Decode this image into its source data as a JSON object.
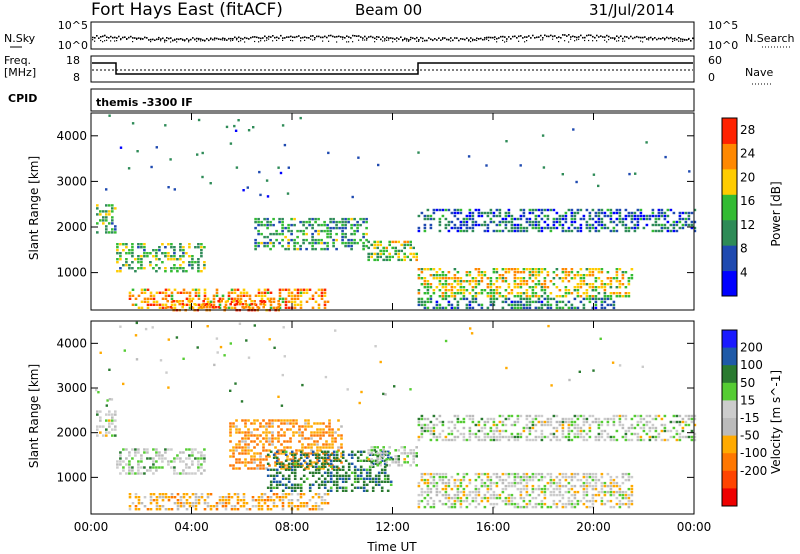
{
  "header": {
    "station": "Fort Hays East (fitACF)",
    "beam": "Beam 00",
    "date": "31/Jul/2014"
  },
  "noise_panel": {
    "left_label": "N.Sky",
    "right_label": "N.Search",
    "left_ticks": [
      "10^5",
      "10^0"
    ],
    "right_ticks": [
      "10^5",
      "10^0"
    ]
  },
  "freq_panel": {
    "left_label_line1": "Freq.",
    "left_label_line2": "[MHz]",
    "right_label": "Nave",
    "left_ticks": [
      "18",
      "8"
    ],
    "right_ticks": [
      "60",
      "0"
    ]
  },
  "cpid_panel": {
    "label": "CPID",
    "program": "themis -3300 IF"
  },
  "colors": {
    "power": [
      "#0000ff",
      "#1f4ab0",
      "#2e8b57",
      "#33bb33",
      "#ffcc00",
      "#ff8800",
      "#ff2200"
    ],
    "velocity": [
      "#1a1aff",
      "#1f5aa8",
      "#2a7a30",
      "#55cc33",
      "#cccccc",
      "#bbbbbb",
      "#ffaa00",
      "#ff7700",
      "#ff4400",
      "#ee0000"
    ]
  },
  "chart_data": [
    {
      "type": "heatmap",
      "title": "Power",
      "ylabel": "Slant Range [km]",
      "xlabel": "",
      "ylim": [
        180,
        4500
      ],
      "yticks": [
        1000,
        2000,
        3000,
        4000
      ],
      "xlim": [
        0,
        24
      ],
      "xticks": [
        0,
        4,
        8,
        12,
        16,
        20,
        24
      ],
      "colorbar": {
        "label": "Power [dB]",
        "ticks": [
          "4",
          "8",
          "12",
          "16",
          "20",
          "24",
          "28"
        ],
        "range": [
          0,
          30
        ]
      },
      "echo_regions": [
        {
          "t0": 0.2,
          "t1": 1.0,
          "r0": 1900,
          "r1": 2500,
          "level": 13
        },
        {
          "t0": 1.0,
          "t1": 4.5,
          "r0": 1050,
          "r1": 1650,
          "level": 14
        },
        {
          "t0": 1.5,
          "t1": 9.5,
          "r0": 250,
          "r1": 650,
          "level": 22
        },
        {
          "t0": 3.0,
          "t1": 7.5,
          "r0": 200,
          "r1": 400,
          "level": 26
        },
        {
          "t0": 6.5,
          "t1": 11.0,
          "r0": 1500,
          "r1": 2200,
          "level": 12
        },
        {
          "t0": 11.0,
          "t1": 13.0,
          "r0": 1250,
          "r1": 1700,
          "level": 16
        },
        {
          "t0": 13.0,
          "t1": 24.0,
          "r0": 1900,
          "r1": 2400,
          "level": 8
        },
        {
          "t0": 13.0,
          "t1": 21.5,
          "r0": 500,
          "r1": 1100,
          "level": 18
        },
        {
          "t0": 13.0,
          "t1": 21.0,
          "r0": 200,
          "r1": 450,
          "level": 10
        }
      ]
    },
    {
      "type": "heatmap",
      "title": "Velocity",
      "ylabel": "Slant Range [km]",
      "xlabel": "Time UT",
      "ylim": [
        180,
        4500
      ],
      "yticks": [
        1000,
        2000,
        3000,
        4000
      ],
      "xlim": [
        0,
        24
      ],
      "xticks": [
        0,
        4,
        8,
        12,
        16,
        20,
        24
      ],
      "xtick_labels": [
        "00:00",
        "04:00",
        "08:00",
        "12:00",
        "16:00",
        "20:00",
        "00:00"
      ],
      "colorbar": {
        "label": "Velocity [m s^-1]",
        "ticks": [
          "200",
          "100",
          "50",
          "15",
          "-15",
          "-50",
          "-100",
          "-200"
        ]
      },
      "echo_regions": [
        {
          "t0": 0.2,
          "t1": 1.0,
          "r0": 1900,
          "r1": 2500,
          "velocity": 0
        },
        {
          "t0": 1.0,
          "t1": 4.5,
          "r0": 1050,
          "r1": 1650,
          "velocity": 5
        },
        {
          "t0": 1.5,
          "t1": 9.5,
          "r0": 250,
          "r1": 650,
          "velocity": -40
        },
        {
          "t0": 5.5,
          "t1": 10.0,
          "r0": 1200,
          "r1": 2300,
          "velocity": -60
        },
        {
          "t0": 7.0,
          "t1": 12.0,
          "r0": 700,
          "r1": 1600,
          "velocity": 60
        },
        {
          "t0": 11.0,
          "t1": 13.0,
          "r0": 1250,
          "r1": 1700,
          "velocity": 0
        },
        {
          "t0": 13.0,
          "t1": 24.0,
          "r0": 1850,
          "r1": 2400,
          "velocity": 0
        },
        {
          "t0": 13.0,
          "t1": 21.5,
          "r0": 300,
          "r1": 1100,
          "velocity": -5
        }
      ]
    }
  ]
}
